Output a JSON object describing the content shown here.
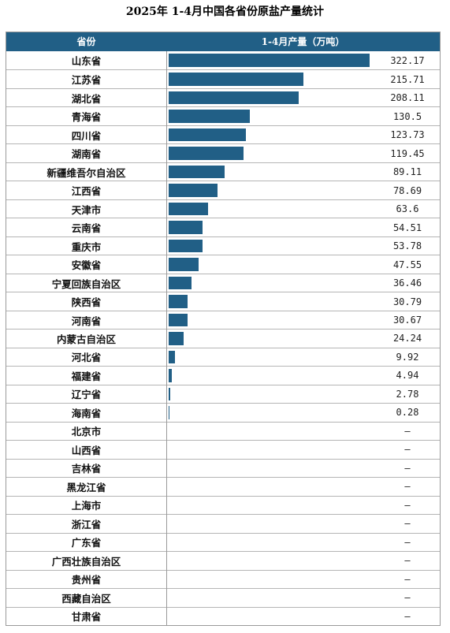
{
  "title": "2025年 1-4月中国各省份原盐产量统计",
  "header": {
    "province": "省份",
    "value": "1-4月产量（万吨）"
  },
  "chart_data": {
    "type": "bar",
    "orientation": "horizontal",
    "title": "2025年 1-4月中国各省份原盐产量统计",
    "xlabel": "1-4月产量（万吨）",
    "ylabel": "省份",
    "xlim": [
      0,
      322.17
    ],
    "accent_color": "#215f86",
    "categories": [
      "山东省",
      "江苏省",
      "湖北省",
      "青海省",
      "四川省",
      "湖南省",
      "新疆维吾尔自治区",
      "江西省",
      "天津市",
      "云南省",
      "重庆市",
      "安徽省",
      "宁夏回族自治区",
      "陕西省",
      "河南省",
      "内蒙古自治区",
      "河北省",
      "福建省",
      "辽宁省",
      "海南省",
      "北京市",
      "山西省",
      "吉林省",
      "黑龙江省",
      "上海市",
      "浙江省",
      "广东省",
      "广西壮族自治区",
      "贵州省",
      "西藏自治区",
      "甘肃省"
    ],
    "values": [
      322.17,
      215.71,
      208.11,
      130.5,
      123.73,
      119.45,
      89.11,
      78.69,
      63.6,
      54.51,
      53.78,
      47.55,
      36.46,
      30.79,
      30.67,
      24.24,
      9.92,
      4.94,
      2.78,
      0.28,
      null,
      null,
      null,
      null,
      null,
      null,
      null,
      null,
      null,
      null,
      null
    ],
    "labels": [
      "322.17",
      "215.71",
      "208.11",
      "130.5",
      "123.73",
      "119.45",
      "89.11",
      "78.69",
      "63.6",
      "54.51",
      "53.78",
      "47.55",
      "36.46",
      "30.79",
      "30.67",
      "24.24",
      "9.92",
      "4.94",
      "2.78",
      "0.28",
      "–",
      "–",
      "–",
      "–",
      "–",
      "–",
      "–",
      "–",
      "–",
      "–",
      "–"
    ]
  }
}
